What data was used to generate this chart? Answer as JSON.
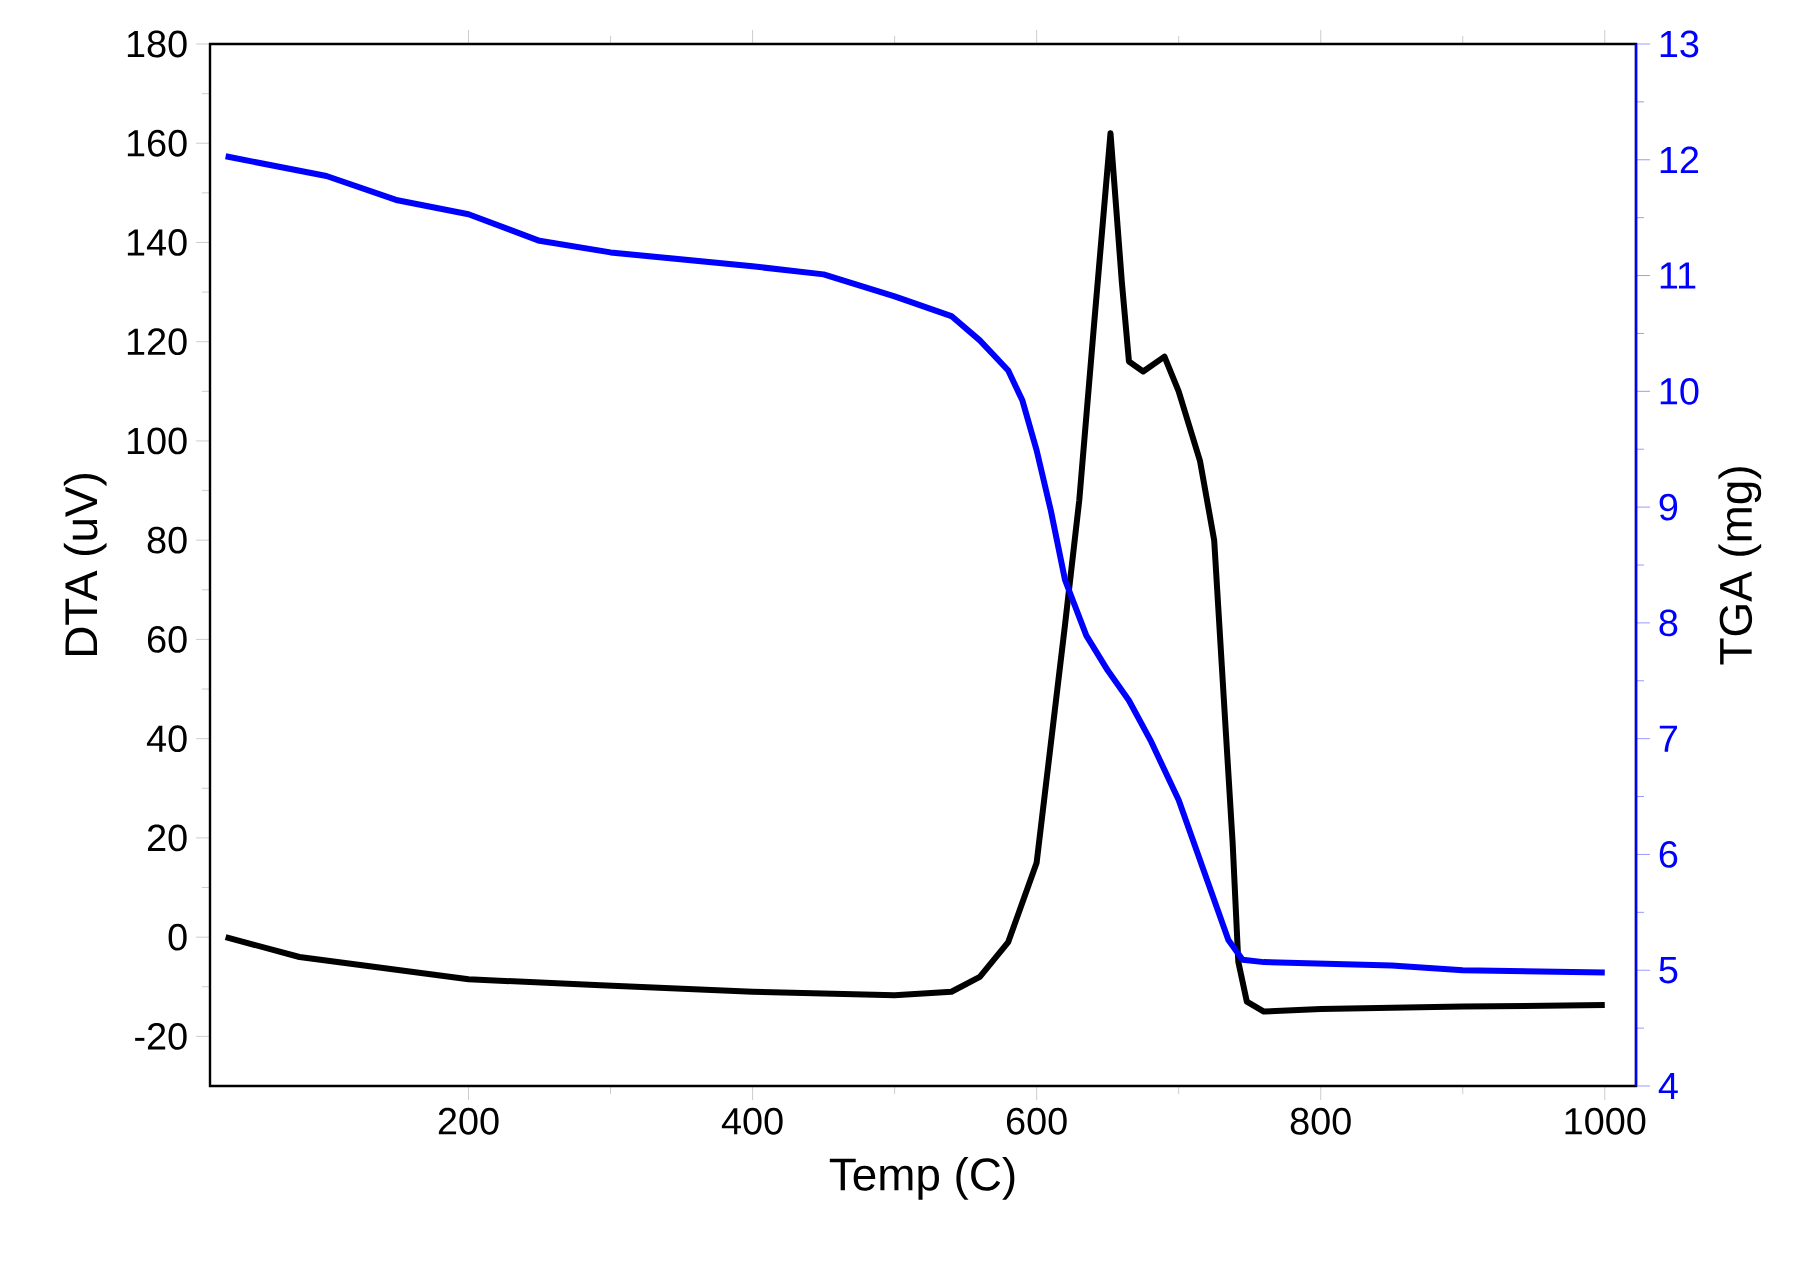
{
  "chart_data": {
    "type": "line",
    "xlabel": "Temp (C)",
    "ylabel": "DTA (uV)",
    "y2label": "TGA (mg)",
    "xlim": [
      18,
      1022
    ],
    "xticks": [
      200,
      400,
      600,
      800,
      1000
    ],
    "ylim": [
      -30,
      180
    ],
    "yticks": [
      -20,
      0,
      20,
      40,
      60,
      80,
      100,
      120,
      140,
      160,
      180
    ],
    "y2lim": [
      4,
      13
    ],
    "y2ticks": [
      4,
      5,
      6,
      7,
      8,
      9,
      10,
      11,
      12,
      13
    ],
    "series": [
      {
        "color": "#000000",
        "x": [
          29,
          81,
          200,
          293,
          400,
          500,
          540,
          560,
          580,
          590,
          600,
          610,
          620,
          630,
          640,
          652,
          660,
          665,
          675,
          690,
          700,
          715,
          725,
          732,
          738,
          742,
          748,
          760,
          800,
          900,
          1000
        ],
        "values": [
          0,
          -4,
          -8.5,
          -9.7,
          -11,
          -11.7,
          -11,
          -8,
          -1,
          7,
          15,
          39,
          63,
          88,
          122,
          162,
          132,
          116,
          114,
          117,
          110,
          96,
          80,
          47,
          19,
          -5,
          -13,
          -15,
          -14.5,
          -14,
          -13.7
        ]
      },
      {
        "color": "#0000ff",
        "axis": "y2",
        "x": [
          29,
          100,
          150,
          200,
          250,
          300,
          400,
          450,
          500,
          540,
          560,
          580,
          590,
          600,
          610,
          620,
          635,
          650,
          665,
          680,
          700,
          720,
          735,
          745,
          760,
          850,
          900,
          1000
        ],
        "values": [
          12.03,
          11.86,
          11.65,
          11.53,
          11.3,
          11.2,
          11.08,
          11.01,
          10.82,
          10.65,
          10.44,
          10.18,
          9.92,
          9.49,
          8.97,
          8.37,
          7.89,
          7.59,
          7.33,
          6.99,
          6.47,
          5.78,
          5.26,
          5.09,
          5.07,
          5.04,
          5.0,
          4.98
        ]
      }
    ]
  }
}
